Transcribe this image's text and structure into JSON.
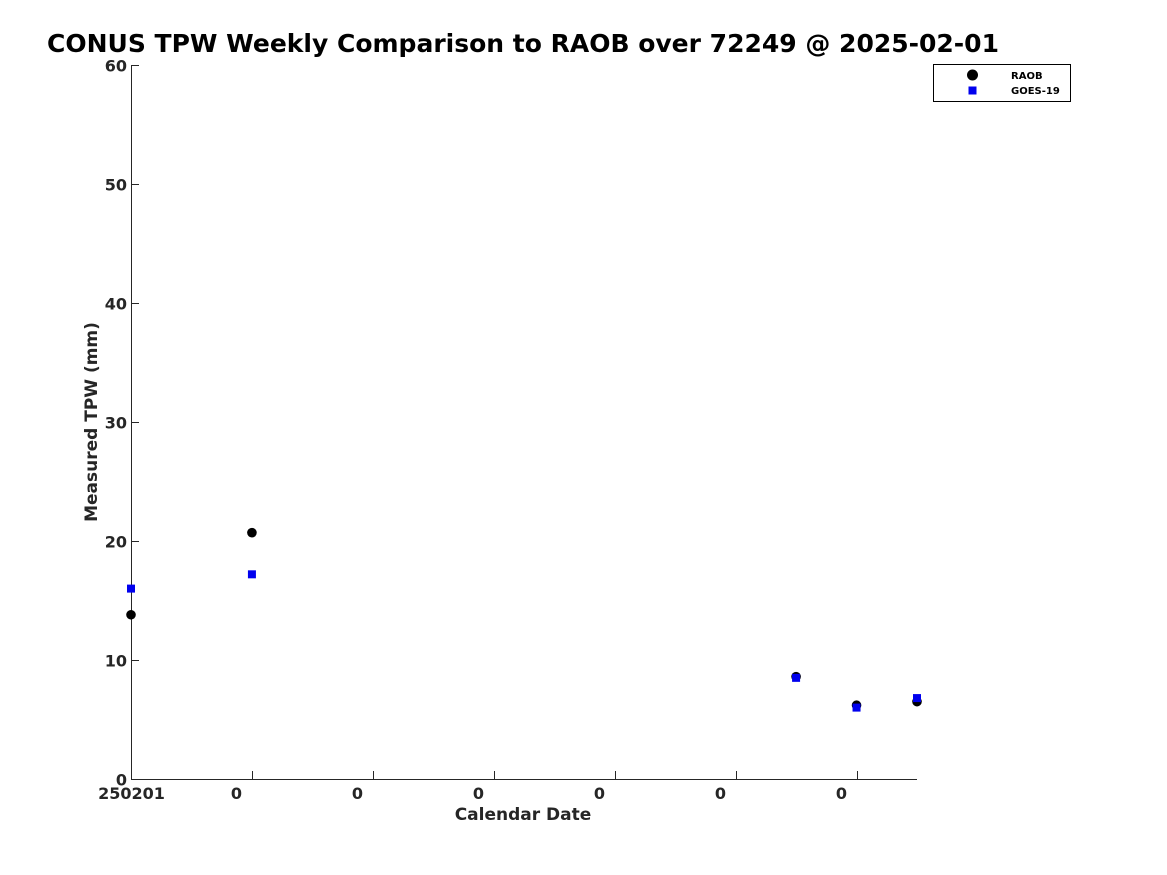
{
  "chart_data": {
    "type": "scatter",
    "title": "CONUS TPW Weekly Comparison to RAOB over 72249 @ 2025-02-01",
    "xlabel": "Calendar Date",
    "ylabel": "Measured TPW (mm)",
    "xlim": [
      0,
      13
    ],
    "ylim": [
      0,
      60
    ],
    "yticks": [
      0,
      10,
      20,
      30,
      40,
      50,
      60
    ],
    "xticks": [
      0,
      2,
      4,
      6,
      8,
      10,
      12
    ],
    "xtick_labels": [
      "250201",
      "0",
      "0",
      "0",
      "0",
      "0",
      "0"
    ],
    "grid": false,
    "legend_position": "top-right",
    "series": [
      {
        "name": "RAOB",
        "marker": "circle",
        "color": "#000000",
        "x": [
          0,
          2,
          11,
          12,
          13
        ],
        "values": [
          13.8,
          20.7,
          8.6,
          6.2,
          6.5
        ]
      },
      {
        "name": "GOES-19",
        "marker": "square",
        "color": "#0000ee",
        "x": [
          0,
          2,
          11,
          12,
          13
        ],
        "values": [
          16.0,
          17.2,
          8.5,
          6.0,
          6.8
        ]
      }
    ]
  }
}
